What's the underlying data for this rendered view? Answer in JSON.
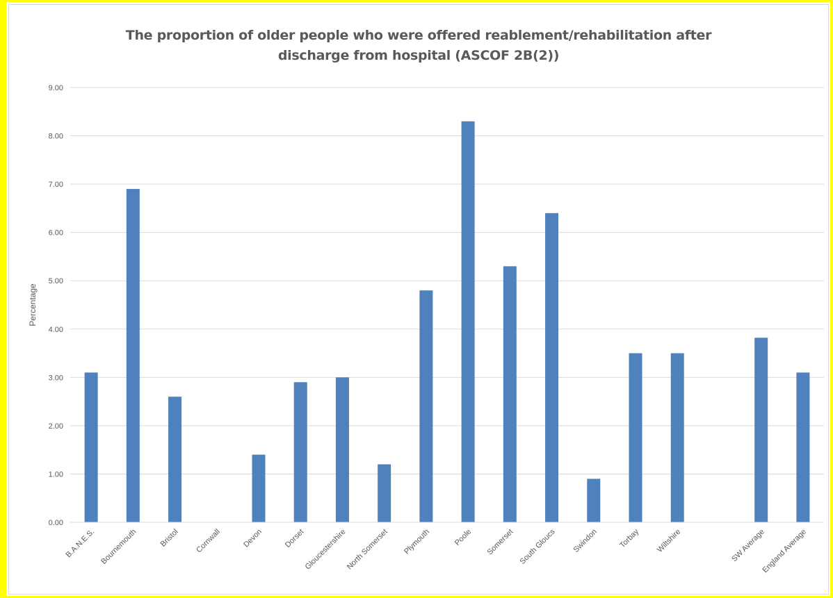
{
  "chart_data": {
    "type": "bar",
    "title": [
      "The proportion of older people who were offered reablement/rehabilitation after",
      "discharge from hospital (ASCOF 2B(2))"
    ],
    "ylabel": "Percentage",
    "xlabel": "",
    "ylim": [
      0,
      9
    ],
    "yticks": [
      "0.00",
      "1.00",
      "2.00",
      "3.00",
      "4.00",
      "5.00",
      "6.00",
      "7.00",
      "8.00",
      "9.00"
    ],
    "categories": [
      "B.A.N.E.S.",
      "Bournemouth",
      "Bristol",
      "Cornwall",
      "Devon",
      "Dorset",
      "Gloucestershire",
      "North Somerset",
      "Plymouth",
      "Poole",
      "Somerset",
      "South Gloucs",
      "Swindon",
      "Torbay",
      "Wiltshire",
      "",
      "SW Average",
      "England Average"
    ],
    "values": [
      3.1,
      6.9,
      2.6,
      0,
      1.4,
      2.9,
      3.0,
      1.2,
      4.8,
      8.3,
      5.3,
      6.4,
      0.9,
      3.5,
      3.5,
      0,
      3.82,
      3.1
    ],
    "bar_color": "#4f81bd",
    "grid": true,
    "legend": "none"
  }
}
